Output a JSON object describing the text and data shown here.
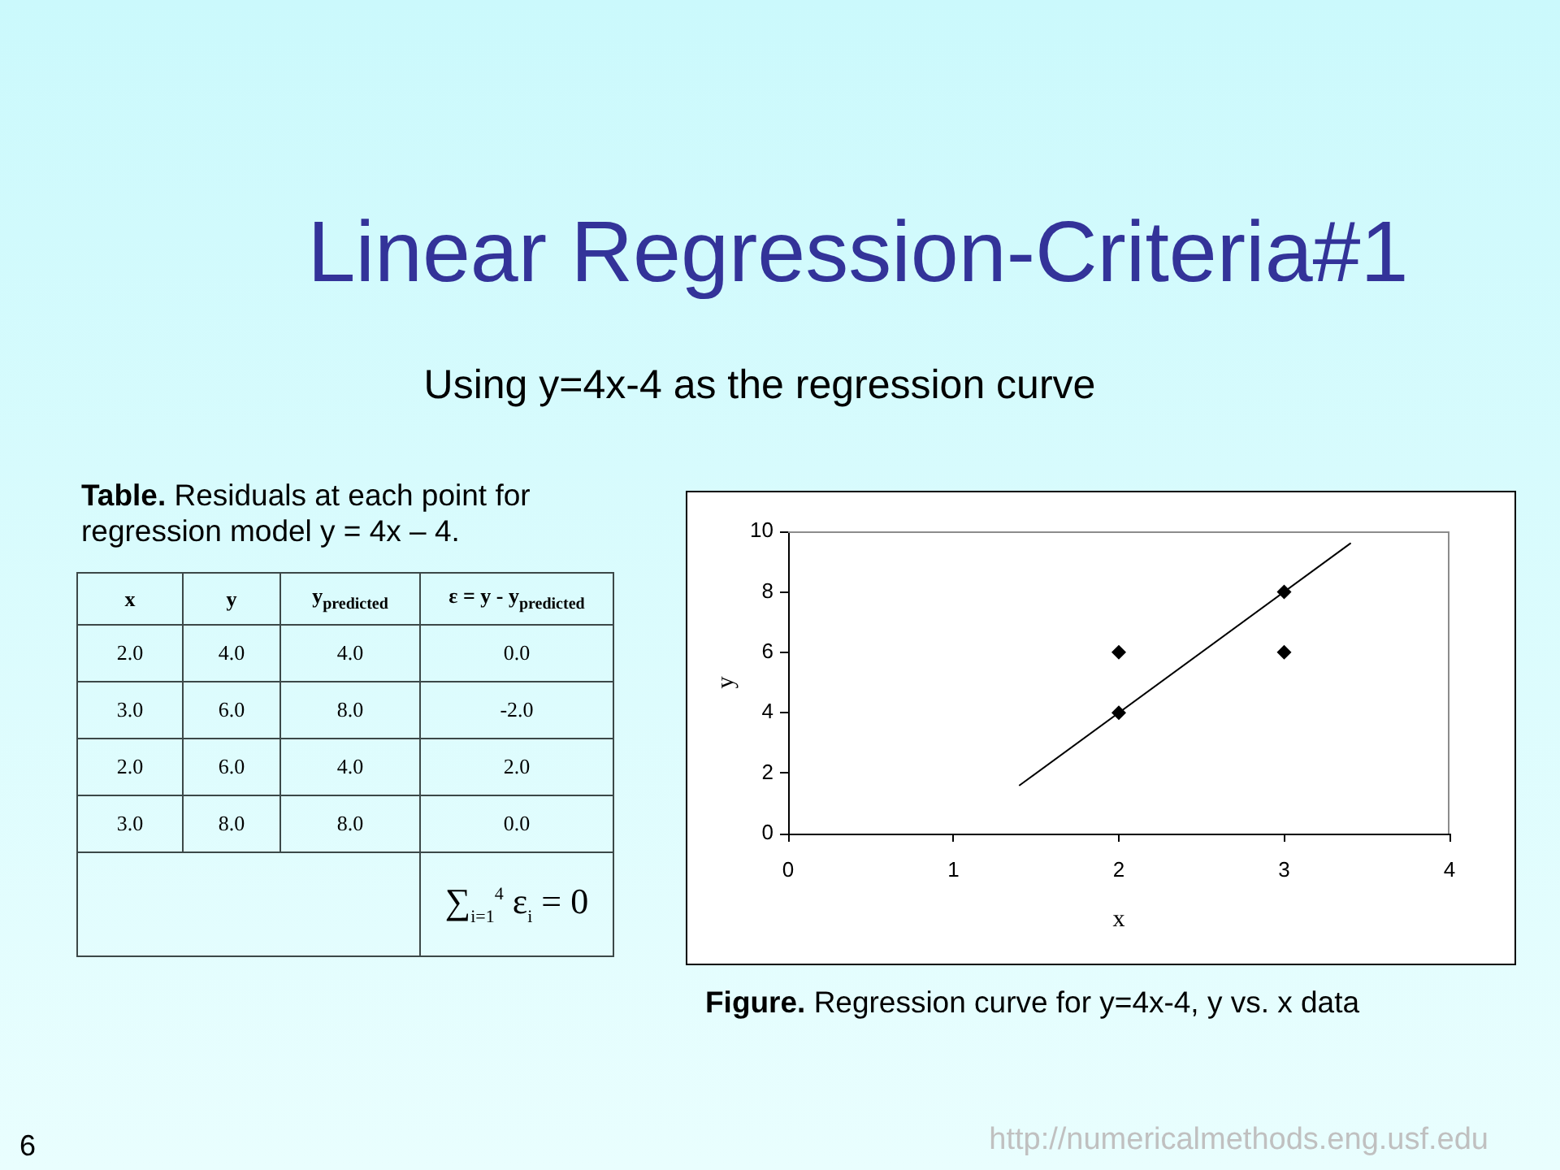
{
  "chart_data": [
    {
      "type": "other",
      "title": "Table. Residuals at each point for regression model y = 4x – 4.",
      "categories": [
        "x",
        "y",
        "y$_{predicted}$",
        "ε = y - y$_{predicted}$"
      ],
      "cell_labels": [
        [
          "2.0",
          "4.0",
          "4.0",
          "0.0"
        ],
        [
          "3.0",
          "6.0",
          "8.0",
          "-2.0"
        ],
        [
          "2.0",
          "6.0",
          "4.0",
          "2.0"
        ],
        [
          "3.0",
          "8.0",
          "8.0",
          "0.0"
        ]
      ],
      "annotations": [
        "∑$_{i=1}$$^{4}$ ε$_{i}$ = 0"
      ]
    },
    {
      "type": "scatter",
      "title": "Linear Regression-Criteria#1",
      "subtitle": "Using y=4x-4 as the regression curve",
      "xlabel": "x",
      "ylabel": "y",
      "xlim": [
        0,
        4
      ],
      "xticks": [
        0,
        1,
        2,
        3,
        4
      ],
      "ylim": [
        0,
        10
      ],
      "yticks": [
        0,
        2,
        4,
        6,
        8,
        10
      ],
      "legend": false,
      "grid": false,
      "series": [
        {
          "type": "scatter",
          "color": "#000000",
          "marker": "diamond",
          "x": [
            2,
            3,
            2,
            3
          ],
          "values": [
            4,
            6,
            6,
            8
          ]
        },
        {
          "type": "line",
          "color": "#000000",
          "marker": "none",
          "x": [
            1.4,
            3.4
          ],
          "values": [
            1.6,
            9.6
          ]
        }
      ],
      "annotations": [
        "Figure. Regression curve for y=4x-4, y vs. x data",
        "6",
        "http://numericalmethods.eng.usf.edu"
      ]
    }
  ]
}
